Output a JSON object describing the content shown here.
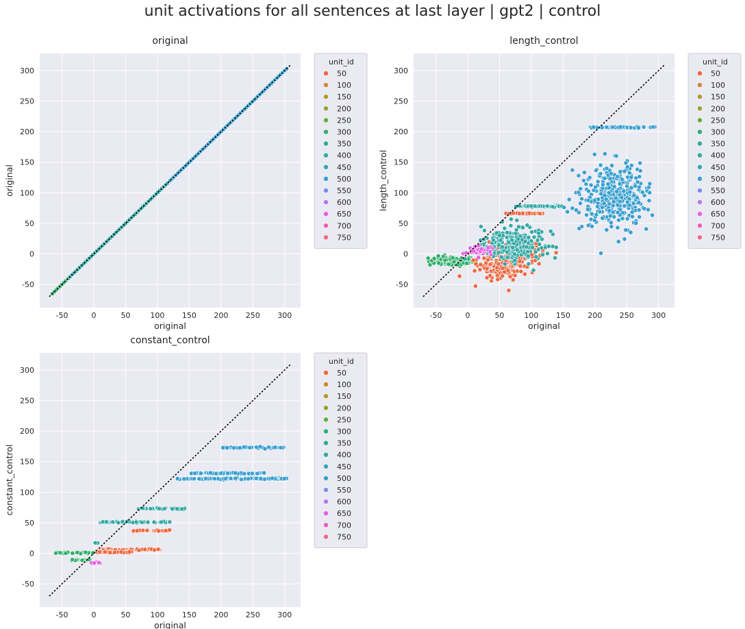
{
  "figure": {
    "title": "unit activations for all sentences at last layer | gpt2 | control"
  },
  "legend": {
    "title": "unit_id",
    "entries": [
      {
        "label": "50",
        "color": "#ec6a43"
      },
      {
        "label": "100",
        "color": "#cc8a37"
      },
      {
        "label": "150",
        "color": "#b19a32"
      },
      {
        "label": "200",
        "color": "#97a232"
      },
      {
        "label": "250",
        "color": "#64ad3b"
      },
      {
        "label": "300",
        "color": "#33af6d"
      },
      {
        "label": "350",
        "color": "#34ac93"
      },
      {
        "label": "400",
        "color": "#35a9a6"
      },
      {
        "label": "450",
        "color": "#37a6b7"
      },
      {
        "label": "500",
        "color": "#3aa0cf"
      },
      {
        "label": "550",
        "color": "#7d90e6"
      },
      {
        "label": "600",
        "color": "#b57aea"
      },
      {
        "label": "650",
        "color": "#e263e3"
      },
      {
        "label": "700",
        "color": "#ec5fb6"
      },
      {
        "label": "750",
        "color": "#ec6a8b"
      }
    ]
  },
  "chart_data": [
    {
      "type": "scatter",
      "title": "original",
      "xlabel": "original",
      "ylabel": "original",
      "xlim": [
        -85,
        325
      ],
      "ylim": [
        -88,
        328
      ],
      "xticks": [
        -50,
        0,
        50,
        100,
        150,
        200,
        250,
        300
      ],
      "yticks": [
        -50,
        0,
        50,
        100,
        150,
        200,
        250,
        300
      ],
      "grid": true,
      "legend_position": "outside-right",
      "reference_line": {
        "x": [
          -70,
          310
        ],
        "y": [
          -70,
          310
        ],
        "style": "dotted",
        "color": "#000000"
      },
      "series": [
        {
          "unit_id": "300",
          "segments": [
            {
              "x": [
                -65,
                -10
              ]
            }
          ]
        },
        {
          "unit_id": "50",
          "segments": [
            {
              "x": [
                0,
                100
              ]
            }
          ]
        },
        {
          "unit_id": "400",
          "segments": [
            {
              "x": [
                -40,
                130
              ]
            }
          ]
        },
        {
          "unit_id": "500",
          "segments": [
            {
              "x": [
                120,
                305
              ]
            }
          ]
        }
      ]
    },
    {
      "type": "scatter",
      "title": "length_control",
      "xlabel": "original",
      "ylabel": "length_control",
      "xlim": [
        -85,
        325
      ],
      "ylim": [
        -88,
        328
      ],
      "xticks": [
        -50,
        0,
        50,
        100,
        150,
        200,
        250,
        300
      ],
      "yticks": [
        -50,
        0,
        50,
        100,
        150,
        200,
        250,
        300
      ],
      "grid": true,
      "legend_position": "outside-right",
      "reference_line": {
        "x": [
          -70,
          310
        ],
        "y": [
          -70,
          310
        ],
        "style": "dotted",
        "color": "#000000"
      },
      "series": [
        {
          "unit_id": "300",
          "bands": [
            {
              "x": [
                -60,
                10
              ],
              "y": -12
            }
          ],
          "clusters": [
            {
              "cx": -25,
              "cy": -12,
              "sx": 18,
              "sy": 4
            }
          ]
        },
        {
          "unit_id": "50",
          "bands": [
            {
              "x": [
                60,
                120
              ],
              "y": 66
            }
          ],
          "clusters": [
            {
              "cx": 55,
              "cy": -18,
              "sx": 20,
              "sy": 12
            },
            {
              "cx": 80,
              "cy": 5,
              "sx": 18,
              "sy": 8
            }
          ]
        },
        {
          "unit_id": "400",
          "bands": [
            {
              "x": [
                75,
                150
              ],
              "y": 78
            }
          ],
          "clusters": [
            {
              "cx": 70,
              "cy": 15,
              "sx": 25,
              "sy": 15
            }
          ]
        },
        {
          "unit_id": "650",
          "bands": [],
          "clusters": [
            {
              "cx": 20,
              "cy": 5,
              "sx": 8,
              "sy": 4
            }
          ]
        },
        {
          "unit_id": "500",
          "bands": [
            {
              "x": [
                190,
                300
              ],
              "y": 207
            }
          ],
          "clusters": [
            {
              "cx": 230,
              "cy": 95,
              "sx": 25,
              "sy": 25
            }
          ]
        }
      ]
    },
    {
      "type": "scatter",
      "title": "constant_control",
      "xlabel": "original",
      "ylabel": "constant_control",
      "xlim": [
        -85,
        325
      ],
      "ylim": [
        -88,
        328
      ],
      "xticks": [
        -50,
        0,
        50,
        100,
        150,
        200,
        250,
        300
      ],
      "yticks": [
        -50,
        0,
        50,
        100,
        150,
        200,
        250,
        300
      ],
      "grid": true,
      "legend_position": "outside-right",
      "reference_line": {
        "x": [
          -70,
          310
        ],
        "y": [
          -70,
          310
        ],
        "style": "dotted",
        "color": "#000000"
      },
      "series": [
        {
          "unit_id": "300",
          "bands": [
            {
              "x": [
                -60,
                10
              ],
              "y": 1
            },
            {
              "x": [
                -35,
                0
              ],
              "y": -11
            }
          ]
        },
        {
          "unit_id": "650",
          "bands": [
            {
              "x": [
                -5,
                10
              ],
              "y": -16
            }
          ]
        },
        {
          "unit_id": "50",
          "bands": [
            {
              "x": [
                10,
                105
              ],
              "y": 6
            },
            {
              "x": [
                60,
                120
              ],
              "y": 37
            },
            {
              "x": [
                5,
                60
              ],
              "y": 2
            }
          ]
        },
        {
          "unit_id": "400",
          "bands": [
            {
              "x": [
                10,
                120
              ],
              "y": 51
            },
            {
              "x": [
                70,
                145
              ],
              "y": 73
            },
            {
              "x": [
                0,
                10
              ],
              "y": 17
            }
          ]
        },
        {
          "unit_id": "500",
          "bands": [
            {
              "x": [
                130,
                305
              ],
              "y": 122
            },
            {
              "x": [
                150,
                270
              ],
              "y": 131
            },
            {
              "x": [
                200,
                300
              ],
              "y": 173
            }
          ]
        }
      ]
    }
  ]
}
